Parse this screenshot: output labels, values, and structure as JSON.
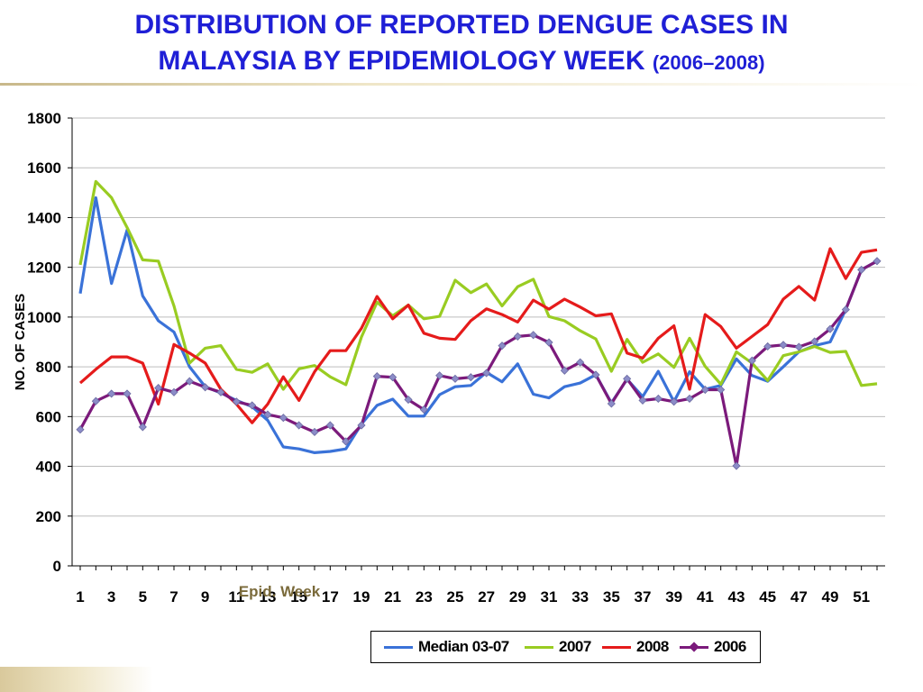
{
  "title": {
    "line1": "DISTRIBUTION OF REPORTED DENGUE CASES IN",
    "line2": "MALAYSIA BY EPIDEMIOLOGY WEEK",
    "subtitle": "(2006–2008)"
  },
  "chart_data": {
    "type": "line",
    "ylabel": "NO. OF CASES",
    "xlabel": "Epid. Week",
    "ylim": [
      0,
      1800
    ],
    "yticks": [
      0,
      200,
      400,
      600,
      800,
      1000,
      1200,
      1400,
      1600,
      1800
    ],
    "xticks": [
      1,
      3,
      5,
      7,
      9,
      11,
      13,
      15,
      17,
      19,
      21,
      23,
      25,
      27,
      29,
      31,
      33,
      35,
      37,
      39,
      41,
      43,
      45,
      47,
      49,
      51
    ],
    "x": [
      1,
      2,
      3,
      4,
      5,
      6,
      7,
      8,
      9,
      10,
      11,
      12,
      13,
      14,
      15,
      16,
      17,
      18,
      19,
      20,
      21,
      22,
      23,
      24,
      25,
      26,
      27,
      28,
      29,
      30,
      31,
      32,
      33,
      34,
      35,
      36,
      37,
      38,
      39,
      40,
      41,
      42,
      43,
      44,
      45,
      46,
      47,
      48,
      49,
      50,
      51,
      52
    ],
    "grid": "horizontal",
    "legend_position": "bottom",
    "series": [
      {
        "name": "Median 03-07",
        "color": "#3a72d8",
        "marker": "none",
        "values": [
          1095,
          1480,
          1135,
          1350,
          1085,
          985,
          940,
          800,
          720,
          695,
          665,
          640,
          585,
          478,
          470,
          455,
          460,
          470,
          570,
          645,
          670,
          602,
          602,
          688,
          720,
          725,
          778,
          740,
          812,
          690,
          675,
          720,
          735,
          768,
          655,
          750,
          680,
          782,
          660,
          780,
          710,
          725,
          832,
          765,
          742,
          800,
          860,
          885,
          900,
          1030,
          1190,
          1225
        ]
      },
      {
        "name": "2007",
        "color": "#99cc22",
        "marker": "none",
        "values": [
          1210,
          1545,
          1480,
          1360,
          1230,
          1225,
          1045,
          815,
          875,
          885,
          790,
          778,
          812,
          710,
          792,
          805,
          760,
          728,
          920,
          1060,
          1005,
          1048,
          993,
          1003,
          1148,
          1098,
          1133,
          1045,
          1122,
          1152,
          1002,
          985,
          945,
          912,
          782,
          910,
          818,
          852,
          798,
          915,
          802,
          730,
          860,
          815,
          745,
          845,
          860,
          882,
          858,
          862,
          725,
          732
        ]
      },
      {
        "name": "2008",
        "color": "#e51b1b",
        "marker": "none",
        "values": [
          735,
          790,
          840,
          840,
          815,
          650,
          890,
          855,
          815,
          710,
          650,
          575,
          650,
          760,
          665,
          780,
          865,
          865,
          955,
          1083,
          993,
          1048,
          935,
          915,
          910,
          985,
          1033,
          1010,
          980,
          1068,
          1032,
          1072,
          1040,
          1005,
          1013,
          855,
          835,
          915,
          965,
          710,
          1010,
          962,
          875,
          922,
          970,
          1072,
          1123,
          1068,
          1275,
          1155,
          1260,
          1270
        ]
      },
      {
        "name": "2006",
        "color": "#7b1a7b",
        "marker": "diamond",
        "values": [
          548,
          662,
          692,
          692,
          558,
          715,
          698,
          742,
          718,
          698,
          660,
          645,
          608,
          595,
          565,
          538,
          565,
          500,
          565,
          762,
          758,
          668,
          628,
          765,
          752,
          758,
          775,
          885,
          922,
          928,
          898,
          785,
          818,
          768,
          652,
          752,
          665,
          672,
          660,
          672,
          708,
          708,
          402,
          825,
          882,
          888,
          880,
          902,
          952,
          1030,
          1190,
          1225
        ]
      }
    ]
  }
}
